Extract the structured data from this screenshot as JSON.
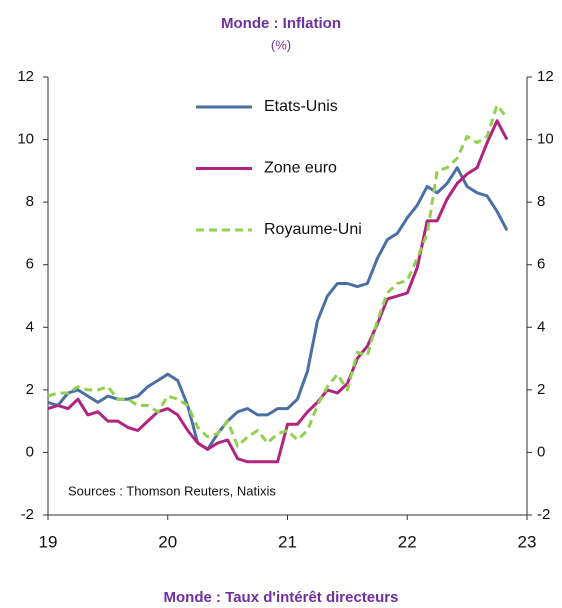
{
  "chart_data": {
    "type": "line",
    "title": "Monde : Inflation",
    "subtitle": "(%)",
    "annotation": "Sources : Thomson Reuters, Natixis",
    "next_title": "Monde : Taux d'intérêt directeurs",
    "x": [
      19,
      19.083,
      19.167,
      19.25,
      19.333,
      19.417,
      19.5,
      19.583,
      19.667,
      19.75,
      19.833,
      19.917,
      20,
      20.083,
      20.167,
      20.25,
      20.333,
      20.417,
      20.5,
      20.583,
      20.667,
      20.75,
      20.833,
      20.917,
      21,
      21.083,
      21.167,
      21.25,
      21.333,
      21.417,
      21.5,
      21.583,
      21.667,
      21.75,
      21.833,
      21.917,
      22,
      22.083,
      22.167,
      22.25,
      22.333,
      22.417,
      22.5,
      22.583,
      22.667,
      22.75,
      22.833
    ],
    "series": [
      {
        "name": "Etats-Unis",
        "color": "#4a6fa5",
        "dash": false,
        "values": [
          1.6,
          1.5,
          1.9,
          2.0,
          1.8,
          1.6,
          1.8,
          1.7,
          1.7,
          1.8,
          2.1,
          2.3,
          2.5,
          2.3,
          1.5,
          0.3,
          0.1,
          0.6,
          1.0,
          1.3,
          1.4,
          1.2,
          1.2,
          1.4,
          1.4,
          1.7,
          2.6,
          4.2,
          5.0,
          5.4,
          5.4,
          5.3,
          5.4,
          6.2,
          6.8,
          7.0,
          7.5,
          7.9,
          8.5,
          8.3,
          8.6,
          9.1,
          8.5,
          8.3,
          8.2,
          7.7,
          7.1
        ]
      },
      {
        "name": "Zone euro",
        "color": "#b0247f",
        "dash": false,
        "values": [
          1.4,
          1.5,
          1.4,
          1.7,
          1.2,
          1.3,
          1.0,
          1.0,
          0.8,
          0.7,
          1.0,
          1.3,
          1.4,
          1.2,
          0.7,
          0.3,
          0.1,
          0.3,
          0.4,
          -0.2,
          -0.3,
          -0.3,
          -0.3,
          -0.3,
          0.9,
          0.9,
          1.3,
          1.6,
          2.0,
          1.9,
          2.2,
          3.0,
          3.4,
          4.1,
          4.9,
          5.0,
          5.1,
          5.9,
          7.4,
          7.4,
          8.1,
          8.6,
          8.9,
          9.1,
          9.9,
          10.6,
          10.0
        ]
      },
      {
        "name": "Royaume-Uni",
        "color": "#92d050",
        "dash": true,
        "values": [
          1.8,
          1.9,
          1.9,
          2.1,
          2.0,
          2.0,
          2.1,
          1.7,
          1.7,
          1.5,
          1.5,
          1.3,
          1.8,
          1.7,
          1.5,
          0.8,
          0.5,
          0.6,
          1.0,
          0.2,
          0.5,
          0.7,
          0.3,
          0.6,
          0.7,
          0.4,
          0.7,
          1.5,
          2.1,
          2.5,
          2.0,
          3.2,
          3.1,
          4.2,
          5.1,
          5.4,
          5.5,
          6.2,
          7.0,
          9.0,
          9.1,
          9.4,
          10.1,
          9.9,
          10.1,
          11.1,
          10.7
        ]
      }
    ],
    "xlim": [
      19,
      23
    ],
    "xticks": [
      19,
      20,
      21,
      22,
      23
    ],
    "ylim": [
      -2,
      12
    ],
    "yticks": [
      -2,
      0,
      2,
      4,
      6,
      8,
      10,
      12
    ],
    "y2lim": [
      -2,
      12
    ],
    "y2ticks": [
      -2,
      0,
      2,
      4,
      6,
      8,
      10,
      12
    ]
  }
}
